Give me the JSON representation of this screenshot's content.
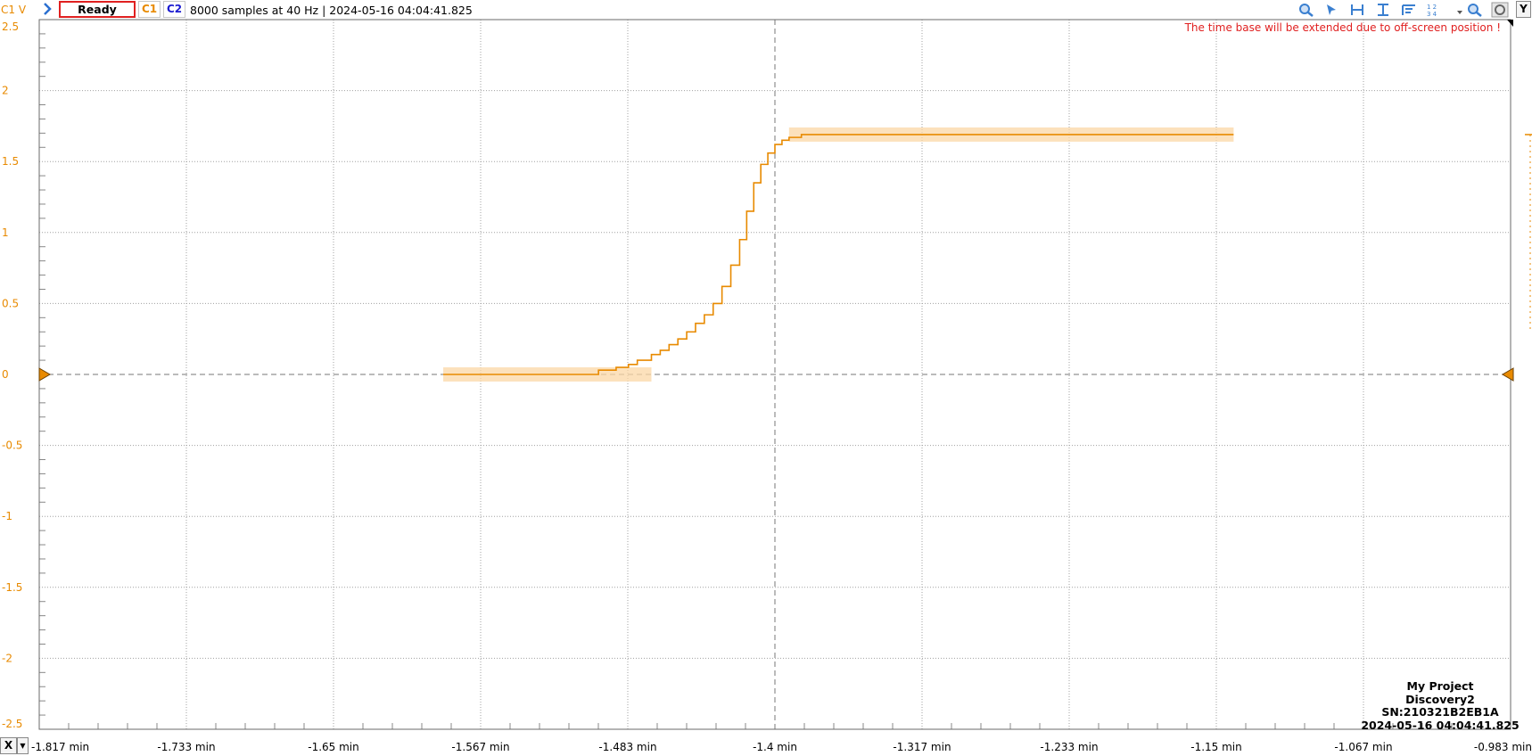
{
  "toolbar": {
    "y_axis_label": "C1 V",
    "status": "Ready",
    "channel1": "C1",
    "channel2": "C2",
    "acquisition_info": "8000 samples at 40 Hz  | 2024-05-16 04:04:41.825",
    "y_button": "Y",
    "tools": [
      "zoom-in-icon",
      "cursor-icon",
      "horizontal-cursor-icon",
      "vertical-cursor-icon",
      "measure-icon",
      "numbering-icon",
      "dropdown-icon",
      "zoom-icon",
      "settings-icon"
    ]
  },
  "x_axis": {
    "button": "X"
  },
  "warning": "The time base will be extended due to off-screen position !",
  "device_info": {
    "project": "My Project",
    "device": "Discovery2",
    "serial": "SN:210321B2EB1A",
    "timestamp": "2024-05-16 04:04:41.825"
  },
  "colors": {
    "trace": "#e88a00",
    "envelope": "#fbd7a6",
    "grid": "#a0a0a0",
    "warning": "#e02020"
  },
  "chart_data": {
    "type": "line",
    "title": "",
    "xlabel": "",
    "ylabel": "C1 V",
    "x_unit": "min",
    "xlim": [
      -1.817,
      -0.983
    ],
    "ylim": [
      -2.5,
      2.5
    ],
    "x_ticks": [
      "-1.817 min",
      "-1.733 min",
      "-1.65 min",
      "-1.567 min",
      "-1.483 min",
      "-1.4 min",
      "-1.317 min",
      "-1.233 min",
      "-1.15 min",
      "-1.067 min",
      "-0.983 min"
    ],
    "y_ticks": [
      "2.5",
      "2",
      "1.5",
      "1",
      "0.5",
      "0",
      "-0.5",
      "-1",
      "-1.5",
      "-2",
      "-2.5"
    ],
    "grid": true,
    "series": [
      {
        "step": true,
        "x": [
          -1.588,
          -1.5,
          -1.49,
          -1.483,
          -1.478,
          -1.47,
          -1.465,
          -1.46,
          -1.455,
          -1.45,
          -1.445,
          -1.44,
          -1.435,
          -1.43,
          -1.425,
          -1.42,
          -1.416,
          -1.412,
          -1.408,
          -1.404,
          -1.4,
          -1.396,
          -1.392,
          -1.385,
          -1.14
        ],
        "y": [
          0.0,
          0.03,
          0.05,
          0.07,
          0.1,
          0.14,
          0.17,
          0.21,
          0.25,
          0.3,
          0.36,
          0.42,
          0.5,
          0.62,
          0.77,
          0.95,
          1.15,
          1.35,
          1.48,
          1.56,
          1.62,
          1.65,
          1.67,
          1.69,
          1.69
        ],
        "envelope": 0.05
      }
    ]
  }
}
